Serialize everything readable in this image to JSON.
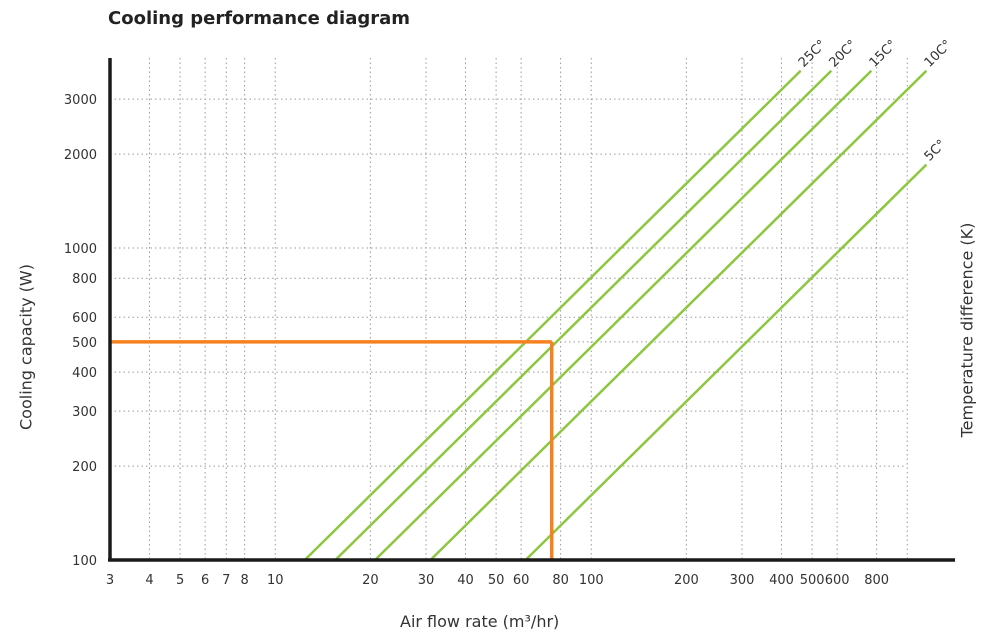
{
  "chart_data": {
    "type": "line",
    "title": "Cooling performance diagram",
    "xlabel": "Air flow rate (m³/hr)",
    "ylabel": "Cooling capacity (W)",
    "y2label": "Temperature difference (K)",
    "xscale": "log",
    "yscale": "log",
    "xlim": [
      3,
      1400
    ],
    "ylim": [
      100,
      4400
    ],
    "grid": true,
    "x_ticks": [
      3,
      4,
      5,
      6,
      7,
      8,
      10,
      20,
      30,
      40,
      50,
      60,
      80,
      100,
      200,
      300,
      400,
      500,
      600,
      800
    ],
    "x_tick_labels": [
      "3",
      "4",
      "5",
      "6",
      "7",
      "8",
      "10",
      "20",
      "30",
      "40",
      "50",
      "60",
      "80",
      "100",
      "200",
      "300",
      "400",
      "500",
      "600",
      "800"
    ],
    "y_ticks": [
      100,
      200,
      300,
      400,
      500,
      600,
      800,
      1000,
      2000,
      3000
    ],
    "y_tick_labels": [
      "100",
      "200",
      "300",
      "400",
      "500",
      "600",
      "800",
      "1000",
      "2000",
      "3000"
    ],
    "series": [
      {
        "name": "25C°",
        "x": [
          12.4,
          460
        ],
        "y": [
          100,
          3700
        ]
      },
      {
        "name": "20C°",
        "x": [
          15.5,
          575
        ],
        "y": [
          100,
          3700
        ]
      },
      {
        "name": "15C°",
        "x": [
          20.7,
          770
        ],
        "y": [
          100,
          3700
        ]
      },
      {
        "name": "10C°",
        "x": [
          31,
          1150
        ],
        "y": [
          100,
          3700
        ]
      },
      {
        "name": "5C°",
        "x": [
          62,
          1150
        ],
        "y": [
          100,
          1850
        ]
      }
    ],
    "annotation": {
      "x": 75,
      "y": 500
    },
    "colors": {
      "series": "#8dc63f",
      "highlight": "#f58220",
      "axis": "#1a1a1a",
      "grid": "#9a9a9a"
    }
  }
}
